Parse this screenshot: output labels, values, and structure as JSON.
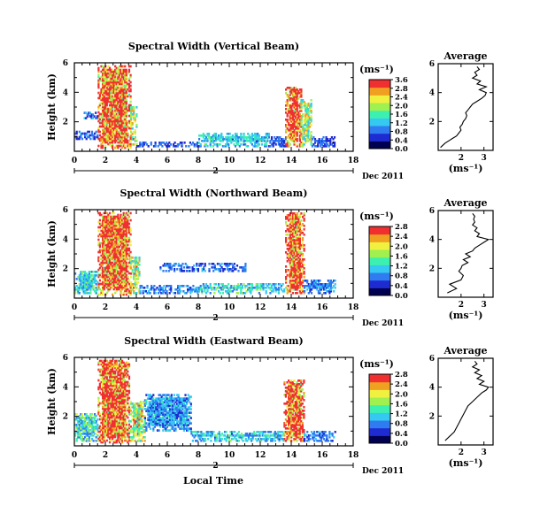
{
  "figure": {
    "xaxis_label": "Local Time",
    "date_label": "Dec 2011",
    "day_marker": "2",
    "yaxis_label": "Height (km)",
    "colorbar_unit": "(ms⁻¹)",
    "average_title": "Average",
    "average_xlabel": "(ms⁻¹)"
  },
  "chart_data": [
    {
      "type": "heatmap",
      "title": "Spectral Width (Vertical Beam)",
      "x_ticks": [
        "0",
        "2",
        "4",
        "6",
        "8",
        "10",
        "12",
        "14",
        "16",
        "18"
      ],
      "xlim": [
        0,
        18
      ],
      "y_ticks": [
        "2",
        "4",
        "6"
      ],
      "ylim": [
        0,
        6
      ],
      "colorbar_ticks": [
        "0.0",
        "0.4",
        "0.8",
        "1.2",
        "1.6",
        "2.0",
        "2.4",
        "2.8",
        "3.6"
      ],
      "colorbar_range": [
        0,
        3.6
      ],
      "colormap": [
        "#000050",
        "#1e2bd0",
        "#2f7bf0",
        "#35c8f0",
        "#3cf0b0",
        "#a0f050",
        "#f0f040",
        "#f0a020",
        "#f03030"
      ],
      "regions": [
        {
          "t": [
            1.5,
            3.6
          ],
          "h": [
            0.2,
            5.8
          ],
          "w": 3.5
        },
        {
          "t": [
            3.6,
            4.0
          ],
          "h": [
            0.3,
            3.0
          ],
          "w": 2.3
        },
        {
          "t": [
            4.0,
            8.0
          ],
          "h": [
            0.3,
            0.6
          ],
          "w": 0.8
        },
        {
          "t": [
            8.0,
            12.5
          ],
          "h": [
            0.3,
            1.2
          ],
          "w": 1.4
        },
        {
          "t": [
            12.5,
            13.6
          ],
          "h": [
            0.3,
            1.0
          ],
          "w": 0.8
        },
        {
          "t": [
            13.6,
            14.6
          ],
          "h": [
            0.3,
            4.5
          ],
          "w": 3.5
        },
        {
          "t": [
            14.6,
            15.3
          ],
          "h": [
            0.3,
            3.5
          ],
          "w": 2.2
        },
        {
          "t": [
            15.3,
            16.8
          ],
          "h": [
            0.3,
            1.0
          ],
          "w": 0.7
        },
        {
          "t": [
            0.0,
            1.5
          ],
          "h": [
            0.8,
            1.3
          ],
          "w": 0.9
        },
        {
          "t": [
            0.6,
            1.5
          ],
          "h": [
            2.2,
            2.6
          ],
          "w": 0.9
        }
      ],
      "average_profile": {
        "xlim": [
          1,
          3.4
        ],
        "x_ticks": [
          "2",
          "3"
        ],
        "ylim": [
          0,
          6
        ],
        "y_ticks": [
          "2",
          "4",
          "6"
        ],
        "height": [
          0.2,
          0.5,
          0.8,
          1.0,
          1.2,
          1.4,
          1.6,
          1.8,
          2.0,
          2.2,
          2.4,
          2.6,
          2.8,
          3.0,
          3.2,
          3.4,
          3.6,
          3.8,
          4.0,
          4.2,
          4.4,
          4.6,
          4.8,
          5.0,
          5.2,
          5.4,
          5.6,
          5.8
        ],
        "width": [
          1.1,
          1.3,
          1.6,
          1.8,
          1.9,
          2.0,
          1.95,
          2.05,
          2.1,
          2.2,
          2.25,
          2.2,
          2.3,
          2.4,
          2.5,
          2.7,
          2.9,
          3.05,
          3.1,
          2.8,
          3.1,
          2.7,
          2.85,
          2.5,
          2.7,
          2.6,
          2.8,
          2.7
        ]
      }
    },
    {
      "type": "heatmap",
      "title": "Spectral Width (Northward Beam)",
      "x_ticks": [
        "0",
        "2",
        "4",
        "6",
        "8",
        "10",
        "12",
        "14",
        "16",
        "18"
      ],
      "xlim": [
        0,
        18
      ],
      "y_ticks": [
        "2",
        "4",
        "6"
      ],
      "ylim": [
        0,
        6
      ],
      "colorbar_ticks": [
        "0.0",
        "0.4",
        "0.8",
        "1.2",
        "1.6",
        "2.0",
        "2.4",
        "2.8"
      ],
      "colorbar_range": [
        0,
        2.8
      ],
      "colormap": [
        "#000050",
        "#1e2bd0",
        "#2f7bf0",
        "#35c8f0",
        "#3cf0b0",
        "#a0f050",
        "#f0f040",
        "#f0a020",
        "#f03030"
      ],
      "regions": [
        {
          "t": [
            1.5,
            3.6
          ],
          "h": [
            0.2,
            5.8
          ],
          "w": 2.8
        },
        {
          "t": [
            3.6,
            4.2
          ],
          "h": [
            0.3,
            2.8
          ],
          "w": 1.8
        },
        {
          "t": [
            0.0,
            1.5
          ],
          "h": [
            0.3,
            1.8
          ],
          "w": 1.2
        },
        {
          "t": [
            4.2,
            8.0
          ],
          "h": [
            0.3,
            0.8
          ],
          "w": 0.8
        },
        {
          "t": [
            8.0,
            13.5
          ],
          "h": [
            0.3,
            1.0
          ],
          "w": 1.2
        },
        {
          "t": [
            13.6,
            14.8
          ],
          "h": [
            0.3,
            5.8
          ],
          "w": 2.8
        },
        {
          "t": [
            14.8,
            16.8
          ],
          "h": [
            0.3,
            1.2
          ],
          "w": 0.8
        },
        {
          "t": [
            5.5,
            11.0
          ],
          "h": [
            1.8,
            2.4
          ],
          "w": 0.7
        }
      ],
      "average_profile": {
        "xlim": [
          1,
          3.4
        ],
        "x_ticks": [
          "2",
          "3"
        ],
        "ylim": [
          0,
          6
        ],
        "y_ticks": [
          "2",
          "4",
          "6"
        ],
        "height": [
          0.3,
          0.6,
          0.9,
          1.2,
          1.5,
          1.8,
          2.0,
          2.2,
          2.4,
          2.6,
          2.8,
          3.0,
          3.2,
          3.4,
          3.6,
          3.8,
          4.0,
          4.2,
          4.4,
          4.6,
          4.8,
          5.0,
          5.2,
          5.4,
          5.6,
          5.8
        ],
        "width": [
          1.4,
          1.8,
          1.5,
          2.0,
          2.1,
          1.9,
          2.0,
          2.05,
          2.3,
          2.1,
          2.4,
          2.2,
          2.5,
          2.6,
          2.8,
          3.0,
          3.2,
          2.7,
          2.8,
          2.6,
          2.7,
          2.5,
          2.6,
          2.55,
          2.6,
          2.5
        ]
      }
    },
    {
      "type": "heatmap",
      "title": "Spectral Width (Eastward Beam)",
      "x_ticks": [
        "0",
        "2",
        "4",
        "6",
        "8",
        "10",
        "12",
        "14",
        "16",
        "18"
      ],
      "xlim": [
        0,
        18
      ],
      "y_ticks": [
        "2",
        "4",
        "6"
      ],
      "ylim": [
        0,
        6
      ],
      "colorbar_ticks": [
        "0.0",
        "0.4",
        "0.8",
        "1.2",
        "1.6",
        "2.0",
        "2.4",
        "2.8"
      ],
      "colorbar_range": [
        0,
        2.8
      ],
      "colormap": [
        "#000050",
        "#1e2bd0",
        "#2f7bf0",
        "#35c8f0",
        "#3cf0b0",
        "#a0f050",
        "#f0f040",
        "#f0a020",
        "#f03030"
      ],
      "regions": [
        {
          "t": [
            1.5,
            3.5
          ],
          "h": [
            0.2,
            5.8
          ],
          "w": 2.8
        },
        {
          "t": [
            3.5,
            4.5
          ],
          "h": [
            0.3,
            3.0
          ],
          "w": 1.8
        },
        {
          "t": [
            0.0,
            1.5
          ],
          "h": [
            0.3,
            2.2
          ],
          "w": 1.3
        },
        {
          "t": [
            4.5,
            7.5
          ],
          "h": [
            1.0,
            3.5
          ],
          "w": 0.9
        },
        {
          "t": [
            7.5,
            13.5
          ],
          "h": [
            0.3,
            1.0
          ],
          "w": 1.1
        },
        {
          "t": [
            13.5,
            14.8
          ],
          "h": [
            0.3,
            4.5
          ],
          "w": 2.8
        },
        {
          "t": [
            14.8,
            16.8
          ],
          "h": [
            0.3,
            1.0
          ],
          "w": 0.8
        }
      ],
      "average_profile": {
        "xlim": [
          1,
          3.4
        ],
        "x_ticks": [
          "2",
          "3"
        ],
        "ylim": [
          0,
          6
        ],
        "y_ticks": [
          "2",
          "4",
          "6"
        ],
        "height": [
          0.3,
          0.6,
          0.9,
          1.2,
          1.5,
          1.8,
          2.1,
          2.4,
          2.7,
          3.0,
          3.3,
          3.6,
          3.8,
          4.0,
          4.2,
          4.4,
          4.6,
          4.8,
          5.0,
          5.2,
          5.4,
          5.6,
          5.8
        ],
        "width": [
          1.3,
          1.5,
          1.7,
          1.8,
          1.9,
          2.0,
          2.1,
          2.2,
          2.3,
          2.5,
          2.7,
          2.9,
          3.1,
          3.2,
          2.8,
          3.0,
          2.7,
          2.9,
          2.6,
          2.8,
          2.5,
          2.7,
          2.6
        ]
      }
    }
  ]
}
